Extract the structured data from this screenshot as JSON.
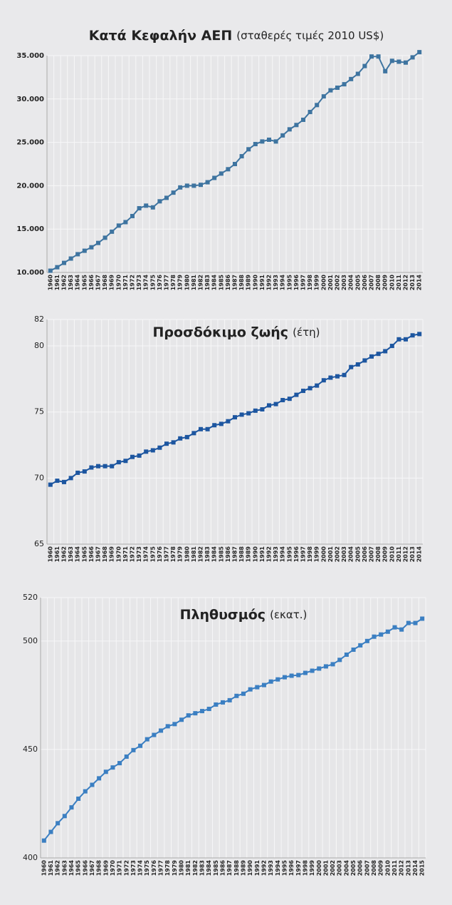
{
  "chart_data": [
    {
      "type": "line",
      "title": "Κατά Κεφαλήν ΑΕΠ",
      "subtitle": "(σταθερές τιμές  2010 US$)",
      "categories": [
        "1960",
        "1961",
        "1962",
        "1963",
        "1964",
        "1965",
        "1966",
        "1967",
        "1968",
        "1969",
        "1970",
        "1971",
        "1972",
        "1973",
        "1974",
        "1975",
        "1976",
        "1977",
        "1978",
        "1979",
        "1980",
        "1981",
        "1982",
        "1983",
        "1984",
        "1985",
        "1986",
        "1987",
        "1988",
        "1989",
        "1990",
        "1991",
        "1992",
        "1993",
        "1994",
        "1995",
        "1996",
        "1997",
        "1998",
        "1999",
        "2000",
        "2001",
        "2002",
        "2003",
        "2004",
        "2005",
        "2006",
        "2007",
        "2008",
        "2009",
        "2010",
        "2011",
        "2012",
        "2013",
        "2014"
      ],
      "values": [
        10200,
        10600,
        11100,
        11600,
        12100,
        12500,
        12900,
        13400,
        14000,
        14700,
        15400,
        15800,
        16500,
        17400,
        17700,
        17500,
        18200,
        18600,
        19200,
        19800,
        20000,
        20000,
        20100,
        20400,
        20900,
        21400,
        21900,
        22500,
        23400,
        24200,
        24800,
        25100,
        25300,
        25100,
        25800,
        26500,
        27000,
        27600,
        28500,
        29300,
        30300,
        31000,
        31300,
        31700,
        32300,
        32900,
        33800,
        34900,
        34900,
        33200,
        34400,
        34300,
        34200,
        34800,
        35400
      ],
      "color": "#3e74a0",
      "ylim": [
        10000,
        35000
      ],
      "yticks": [
        {
          "value": 10000,
          "label": "10.000"
        },
        {
          "value": 15000,
          "label": "15.000"
        },
        {
          "value": 20000,
          "label": "20.000"
        },
        {
          "value": 25000,
          "label": "25.000"
        },
        {
          "value": 30000,
          "label": "30.000"
        },
        {
          "value": 35000,
          "label": "35.000"
        }
      ],
      "grid": true
    },
    {
      "type": "line",
      "title": "Προσδόκιμο ζωής",
      "subtitle": "(έτη)",
      "categories": [
        "1960",
        "1961",
        "1962",
        "1963",
        "1964",
        "1965",
        "1966",
        "1967",
        "1968",
        "1969",
        "1970",
        "1971",
        "1972",
        "1973",
        "1974",
        "1975",
        "1976",
        "1977",
        "1978",
        "1979",
        "1980",
        "1981",
        "1982",
        "1983",
        "1984",
        "1985",
        "1986",
        "1987",
        "1988",
        "1989",
        "1990",
        "1991",
        "1992",
        "1993",
        "1994",
        "1995",
        "1996",
        "1997",
        "1998",
        "1999",
        "2000",
        "2001",
        "2002",
        "2003",
        "2004",
        "2005",
        "2006",
        "2007",
        "2008",
        "2009",
        "2010",
        "2011",
        "2012",
        "2013",
        "2014"
      ],
      "values": [
        69.5,
        69.8,
        69.7,
        70.0,
        70.4,
        70.5,
        70.8,
        70.9,
        70.9,
        70.9,
        71.2,
        71.3,
        71.6,
        71.7,
        72.0,
        72.1,
        72.3,
        72.6,
        72.7,
        73.0,
        73.1,
        73.4,
        73.7,
        73.7,
        74.0,
        74.1,
        74.3,
        74.6,
        74.8,
        74.9,
        75.1,
        75.2,
        75.5,
        75.6,
        75.9,
        76.0,
        76.3,
        76.6,
        76.8,
        77.0,
        77.4,
        77.6,
        77.7,
        77.8,
        78.4,
        78.6,
        78.9,
        79.2,
        79.4,
        79.6,
        80.0,
        80.5,
        80.5,
        80.8,
        80.9
      ],
      "color": "#1d56a0",
      "ylim": [
        65,
        82
      ],
      "yticks": [
        65,
        70,
        75,
        80,
        82
      ],
      "grid": true
    },
    {
      "type": "line",
      "title": "Πληθυσμός",
      "subtitle": "(εκατ.)",
      "categories": [
        "1960",
        "1961",
        "1962",
        "1963",
        "1964",
        "1965",
        "1966",
        "1967",
        "1968",
        "1969",
        "1970",
        "1971",
        "1972",
        "1973",
        "1974",
        "1975",
        "1976",
        "1977",
        "1978",
        "1979",
        "1980",
        "1981",
        "1982",
        "1983",
        "1984",
        "1985",
        "1986",
        "1987",
        "1988",
        "1989",
        "1990",
        "1991",
        "1992",
        "1993",
        "1994",
        "1995",
        "1996",
        "1997",
        "1998",
        "1999",
        "2000",
        "2001",
        "2002",
        "2003",
        "2004",
        "2005",
        "2006",
        "2007",
        "2008",
        "2009",
        "2010",
        "2011",
        "2012",
        "2013",
        "2014",
        "2015"
      ],
      "values": [
        408,
        412,
        416,
        419.3,
        423.3,
        427.3,
        430.7,
        433.7,
        436.7,
        439.7,
        441.7,
        443.7,
        446.7,
        449.7,
        451.7,
        454.7,
        456.7,
        458.7,
        460.7,
        461.7,
        463.7,
        465.7,
        466.7,
        467.7,
        468.7,
        470.7,
        471.7,
        472.7,
        474.7,
        475.7,
        477.7,
        478.7,
        479.7,
        481.3,
        482.3,
        483.3,
        484,
        484.3,
        485.3,
        486.3,
        487.3,
        488.3,
        489.3,
        491.3,
        493.7,
        496,
        498,
        500,
        502,
        503,
        504.3,
        506.3,
        505.3,
        508.3,
        508.3,
        510.3
      ],
      "color": "#3b7fc2",
      "ylim": [
        400,
        520
      ],
      "yticks": [
        400,
        450,
        500,
        520
      ],
      "grid": true
    }
  ]
}
